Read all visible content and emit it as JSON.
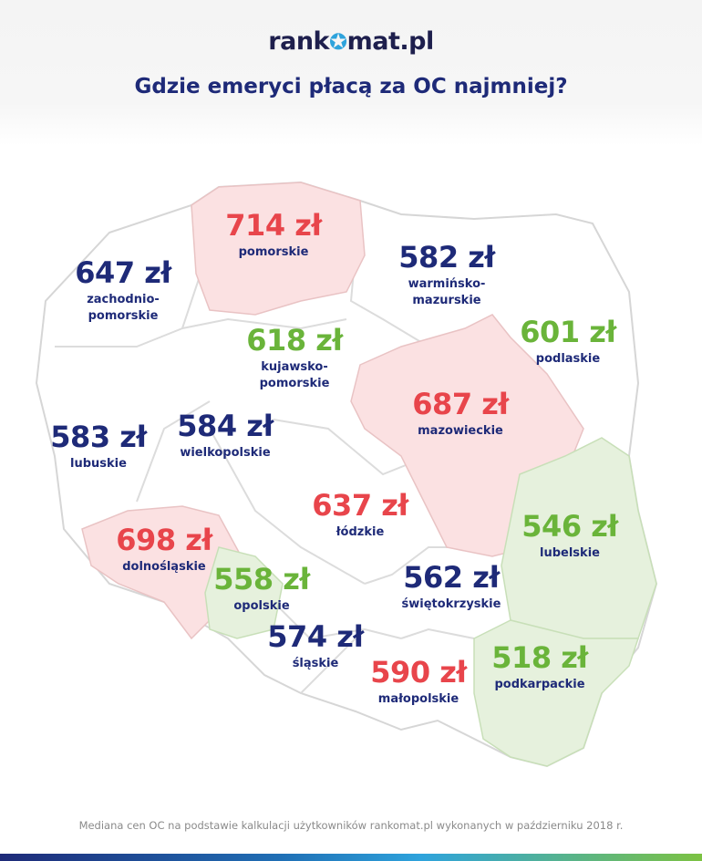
{
  "brand": {
    "logo_left": "rank",
    "logo_right": "mat.pl"
  },
  "title": "Gdzie emeryci płacą za OC najmniej?",
  "colors": {
    "high": "#e8454b",
    "mid": "#1e2a78",
    "low": "#6ab43a",
    "high_fill": "#fbe1e2",
    "low_fill": "#e6f1dd",
    "border": "#d6d6d6"
  },
  "regions": [
    {
      "price": "714 zł",
      "name": "pomorskie",
      "tier": "high"
    },
    {
      "price": "647 zł",
      "name": "zachodnio-\npomorskie",
      "tier": "mid"
    },
    {
      "price": "582 zł",
      "name": "warmińsko-\nmazurskie",
      "tier": "mid"
    },
    {
      "price": "618 zł",
      "name": "kujawsko-\npomorskie",
      "tier": "low"
    },
    {
      "price": "601 zł",
      "name": "podlaskie",
      "tier": "low"
    },
    {
      "price": "687 zł",
      "name": "mazowieckie",
      "tier": "high"
    },
    {
      "price": "583 zł",
      "name": "lubuskie",
      "tier": "mid"
    },
    {
      "price": "584 zł",
      "name": "wielkopolskie",
      "tier": "mid"
    },
    {
      "price": "637 zł",
      "name": "łódzkie",
      "tier": "high"
    },
    {
      "price": "546 zł",
      "name": "lubelskie",
      "tier": "low"
    },
    {
      "price": "698 zł",
      "name": "dolnośląskie",
      "tier": "high"
    },
    {
      "price": "558 zł",
      "name": "opolskie",
      "tier": "low"
    },
    {
      "price": "562 zł",
      "name": "świętokrzyskie",
      "tier": "mid"
    },
    {
      "price": "574 zł",
      "name": "śląskie",
      "tier": "mid"
    },
    {
      "price": "590 zł",
      "name": "małopolskie",
      "tier": "high"
    },
    {
      "price": "518 zł",
      "name": "podkarpackie",
      "tier": "low"
    }
  ],
  "footer": "Mediana cen OC na podstawie kalkulacji użytkowników rankomat.pl wykonanych w październiku 2018 r."
}
